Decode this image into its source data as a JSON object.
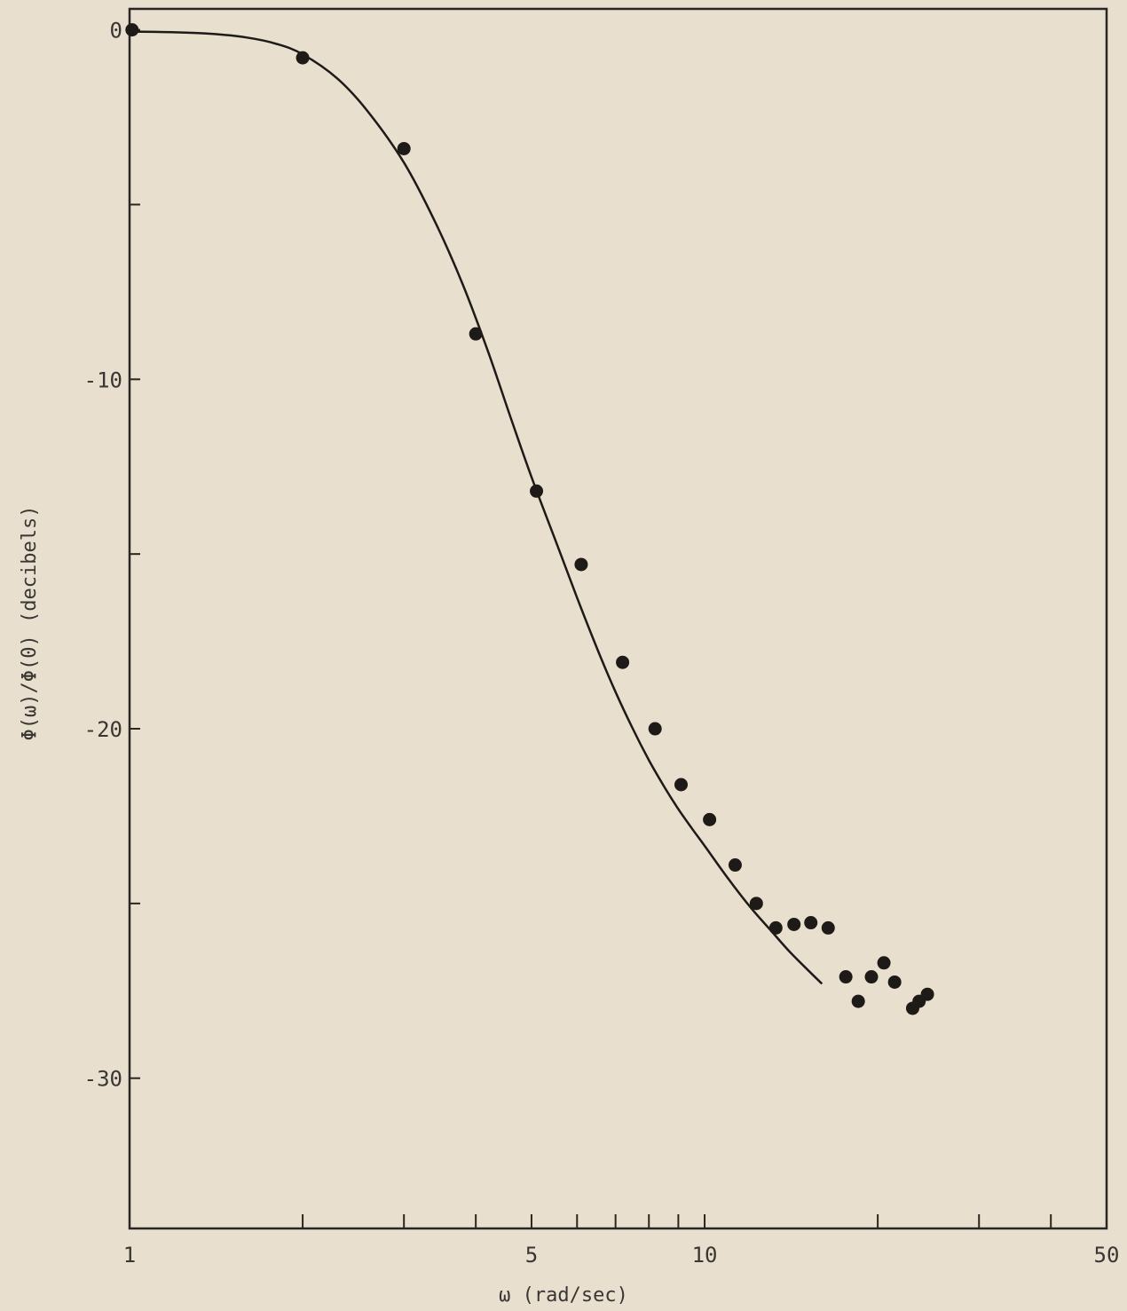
{
  "chart_data": {
    "type": "scatter",
    "title": "",
    "xlabel": "ω (rad/sec)",
    "ylabel": "Φ(ω)/Φ(0) (decibels)",
    "x_scale": "log",
    "xlim": [
      1,
      50
    ],
    "ylim": [
      -34.3,
      0.6
    ],
    "x_ticks": [
      1,
      2,
      3,
      4,
      5,
      6,
      7,
      8,
      9,
      10,
      20,
      30,
      40,
      50
    ],
    "x_tick_labels": [
      {
        "value": 1,
        "label": "1"
      },
      {
        "value": 5,
        "label": "5"
      },
      {
        "value": 10,
        "label": "10"
      },
      {
        "value": 50,
        "label": "50"
      }
    ],
    "y_ticks": [
      0,
      -5,
      -10,
      -15,
      -20,
      -25,
      -30
    ],
    "y_tick_labels": [
      {
        "value": 0,
        "label": "0"
      },
      {
        "value": -10,
        "label": "-10"
      },
      {
        "value": -20,
        "label": "-20"
      },
      {
        "value": -30,
        "label": "-30"
      }
    ],
    "grid": false,
    "colors": {
      "background": "#e8dfcf",
      "ink": "#1e1a17",
      "axis": "#2a2622"
    },
    "series": [
      {
        "type": "scatter",
        "x": [
          1.01,
          2.0,
          3.0,
          4.0,
          5.1,
          6.1,
          7.2,
          8.2,
          9.1,
          10.2,
          11.3,
          12.3,
          13.3,
          14.3,
          15.3,
          16.4,
          17.6,
          18.5,
          19.5,
          20.5,
          21.4,
          23.0,
          23.6,
          24.4
        ],
        "y": [
          0.0,
          -0.8,
          -3.4,
          -8.7,
          -13.2,
          -15.3,
          -18.1,
          -20.0,
          -21.6,
          -22.6,
          -23.9,
          -25.0,
          -25.7,
          -25.6,
          -25.55,
          -25.7,
          -27.1,
          -27.8,
          -27.1,
          -26.7,
          -27.25,
          -28.0,
          -27.8,
          -27.6
        ]
      },
      {
        "type": "line",
        "x": [
          1.0,
          1.2,
          1.4,
          1.6,
          1.8,
          2.0,
          2.3,
          2.6,
          3.0,
          3.4,
          3.8,
          4.2,
          4.6,
          5.0,
          5.5,
          6.0,
          6.5,
          7.0,
          7.5,
          8.0,
          8.5,
          9.0,
          9.5,
          10.0,
          11.0,
          12.0,
          13.0,
          14.0,
          15.0,
          16.0
        ],
        "y": [
          -0.05,
          -0.07,
          -0.12,
          -0.22,
          -0.4,
          -0.7,
          -1.4,
          -2.35,
          -3.8,
          -5.5,
          -7.3,
          -9.2,
          -11.1,
          -12.8,
          -14.6,
          -16.25,
          -17.7,
          -18.95,
          -20.0,
          -20.9,
          -21.65,
          -22.3,
          -22.85,
          -23.35,
          -24.3,
          -25.1,
          -25.75,
          -26.35,
          -26.85,
          -27.3
        ]
      }
    ]
  }
}
